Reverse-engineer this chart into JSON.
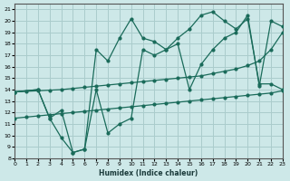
{
  "title": "",
  "xlabel": "Humidex (Indice chaleur)",
  "bg_color": "#cde8e8",
  "grid_color": "#aacccc",
  "line_color": "#1a6b5a",
  "xlim": [
    0,
    23
  ],
  "ylim": [
    8,
    21.5
  ],
  "xticks": [
    0,
    1,
    2,
    3,
    4,
    5,
    6,
    7,
    8,
    9,
    10,
    11,
    12,
    13,
    14,
    15,
    16,
    17,
    18,
    19,
    20,
    21,
    22,
    23
  ],
  "yticks": [
    8,
    9,
    10,
    11,
    12,
    13,
    14,
    15,
    16,
    17,
    18,
    19,
    20,
    21
  ],
  "line_upper_diag_x": [
    0,
    1,
    2,
    3,
    4,
    5,
    6,
    7,
    8,
    9,
    10,
    11,
    12,
    13,
    14,
    15,
    16,
    17,
    18,
    19,
    20,
    21,
    22,
    23
  ],
  "line_upper_diag_y": [
    13.8,
    13.85,
    13.9,
    13.95,
    14.0,
    14.1,
    14.2,
    14.3,
    14.4,
    14.5,
    14.6,
    14.7,
    14.8,
    14.9,
    15.0,
    15.1,
    15.2,
    15.4,
    15.6,
    15.8,
    16.1,
    16.5,
    17.5,
    19.0
  ],
  "line_lower_diag_x": [
    0,
    1,
    2,
    3,
    4,
    5,
    6,
    7,
    8,
    9,
    10,
    11,
    12,
    13,
    14,
    15,
    16,
    17,
    18,
    19,
    20,
    21,
    22,
    23
  ],
  "line_lower_diag_y": [
    11.5,
    11.6,
    11.7,
    11.8,
    11.9,
    12.0,
    12.1,
    12.2,
    12.3,
    12.4,
    12.5,
    12.6,
    12.7,
    12.8,
    12.9,
    13.0,
    13.1,
    13.2,
    13.3,
    13.4,
    13.5,
    13.6,
    13.7,
    13.9
  ],
  "line_wavy_high_x": [
    0,
    2,
    3,
    4,
    5,
    6,
    7,
    8,
    9,
    10,
    11,
    12,
    13,
    14,
    15,
    16,
    17,
    18,
    19,
    20,
    21,
    22,
    23
  ],
  "line_wavy_high_y": [
    13.8,
    14.0,
    11.5,
    9.8,
    8.5,
    8.8,
    17.5,
    16.5,
    18.5,
    20.2,
    18.5,
    18.2,
    17.5,
    18.5,
    19.3,
    20.5,
    20.8,
    20.0,
    19.3,
    20.2,
    14.5,
    14.5,
    14.0
  ],
  "line_wavy_low_x": [
    0,
    2,
    3,
    4,
    5,
    6,
    7,
    8,
    9,
    10,
    11,
    12,
    13,
    14,
    15,
    16,
    17,
    18,
    19,
    20,
    21,
    22,
    23
  ],
  "line_wavy_low_y": [
    13.8,
    14.0,
    11.5,
    12.2,
    8.5,
    8.8,
    14.0,
    10.2,
    11.0,
    11.5,
    17.5,
    17.0,
    17.5,
    18.0,
    14.0,
    16.2,
    17.5,
    18.5,
    19.0,
    20.5,
    14.3,
    20.0,
    19.5
  ]
}
